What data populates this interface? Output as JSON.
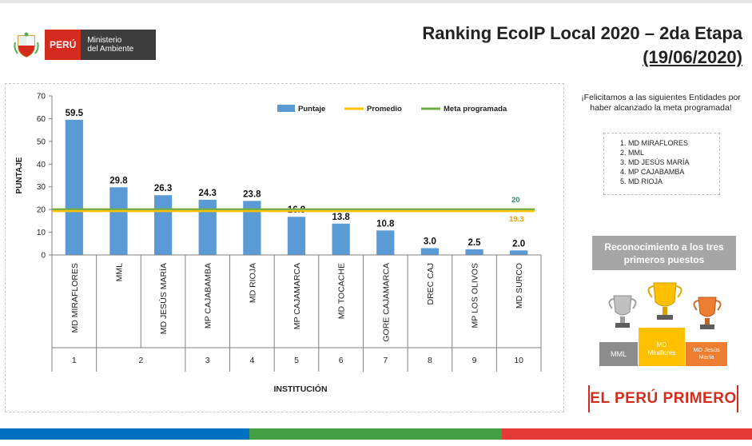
{
  "header": {
    "gov_peru": "PERÚ",
    "gov_ministry_line1": "Ministerio",
    "gov_ministry_line2": "del Ambiente",
    "title": "Ranking EcoIP Local 2020 – 2da Etapa",
    "subtitle": "(19/06/2020)"
  },
  "chart_data": {
    "type": "bar",
    "title": "",
    "xlabel": "INSTITUCIÓN",
    "ylabel": "PUNTAJE",
    "ylim": [
      0,
      70
    ],
    "yticks": [
      0,
      10,
      20,
      30,
      40,
      50,
      60,
      70
    ],
    "grid": false,
    "legend_position": "top-right",
    "categories": [
      "MD MIRAFLORES",
      "MML",
      "MD JESÚS MARÍA",
      "MP CAJABAMBA",
      "MD RIOJA",
      "MP CAJAMARCA",
      "MD TOCACHE",
      "GORE CAJAMARCA",
      "DREC CAJ",
      "MP LOS OLIVOS",
      "MD SURCO"
    ],
    "ranks": [
      "1",
      "2",
      "3",
      "4",
      "5",
      "6",
      "7",
      "8",
      "9",
      "10"
    ],
    "rank_spans": [
      1,
      2,
      1,
      1,
      1,
      1,
      1,
      1,
      1,
      1
    ],
    "series": [
      {
        "name": "Puntaje",
        "type": "bar",
        "color": "#5b9bd5",
        "values": [
          59.5,
          29.8,
          26.3,
          24.3,
          23.8,
          16.8,
          13.8,
          10.8,
          3.0,
          2.5,
          2.0
        ],
        "labels": [
          "59.5",
          "29.8",
          "26.3",
          "24.3",
          "23.8",
          "16.8",
          "13.8",
          "10.8",
          "3.0",
          "2.5",
          "2.0"
        ]
      },
      {
        "name": "Promedio",
        "type": "line",
        "color": "#ffc000",
        "value": 19.3,
        "label": "19.3"
      },
      {
        "name": "Meta programada",
        "type": "line",
        "color": "#70ad47",
        "value": 20,
        "label": "20"
      }
    ]
  },
  "sidebar": {
    "congrats_text": "¡Felicitamos a las siguientes Entidades por haber alcanzado la meta programada!",
    "entities": [
      "MD MIRAFLORES",
      "MML",
      "MD JESÚS MARÍA",
      "MP CAJABAMBA",
      "MD RIOJA"
    ],
    "recognition_title": "Reconocimiento a los tres primeros puestos",
    "podium": {
      "left": "MML",
      "center_line1": "MD",
      "center_line2": "Miraflores",
      "right_line1": "MD Jesús",
      "right_line2": "María"
    },
    "brand": "EL PERÚ PRIMERO"
  },
  "colors": {
    "peru_red": "#d52b1e",
    "stripe_blue": "#0070c0",
    "stripe_green": "#43a047",
    "stripe_red": "#e53935"
  }
}
